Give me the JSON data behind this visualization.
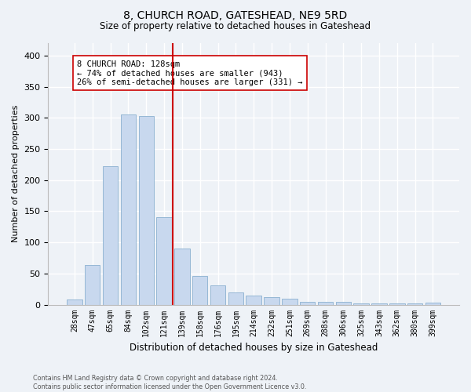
{
  "title": "8, CHURCH ROAD, GATESHEAD, NE9 5RD",
  "subtitle": "Size of property relative to detached houses in Gateshead",
  "xlabel": "Distribution of detached houses by size in Gateshead",
  "ylabel": "Number of detached properties",
  "bar_color": "#c8d8ee",
  "bar_edge_color": "#8ab0d0",
  "categories": [
    "28sqm",
    "47sqm",
    "65sqm",
    "84sqm",
    "102sqm",
    "121sqm",
    "139sqm",
    "158sqm",
    "176sqm",
    "195sqm",
    "214sqm",
    "232sqm",
    "251sqm",
    "269sqm",
    "288sqm",
    "306sqm",
    "325sqm",
    "343sqm",
    "362sqm",
    "380sqm",
    "399sqm"
  ],
  "values": [
    8,
    64,
    222,
    305,
    303,
    140,
    90,
    46,
    31,
    20,
    14,
    12,
    10,
    5,
    4,
    4,
    2,
    2,
    2,
    2,
    3
  ],
  "vline_x_idx": 5,
  "vline_color": "#cc0000",
  "annotation_line1": "8 CHURCH ROAD: 128sqm",
  "annotation_line2": "← 74% of detached houses are smaller (943)",
  "annotation_line3": "26% of semi-detached houses are larger (331) →",
  "ylim": [
    0,
    420
  ],
  "yticks": [
    0,
    50,
    100,
    150,
    200,
    250,
    300,
    350,
    400
  ],
  "bg_color": "#eef2f7",
  "plot_bg_color": "#eef2f7",
  "footer1": "Contains HM Land Registry data © Crown copyright and database right 2024.",
  "footer2": "Contains public sector information licensed under the Open Government Licence v3.0."
}
